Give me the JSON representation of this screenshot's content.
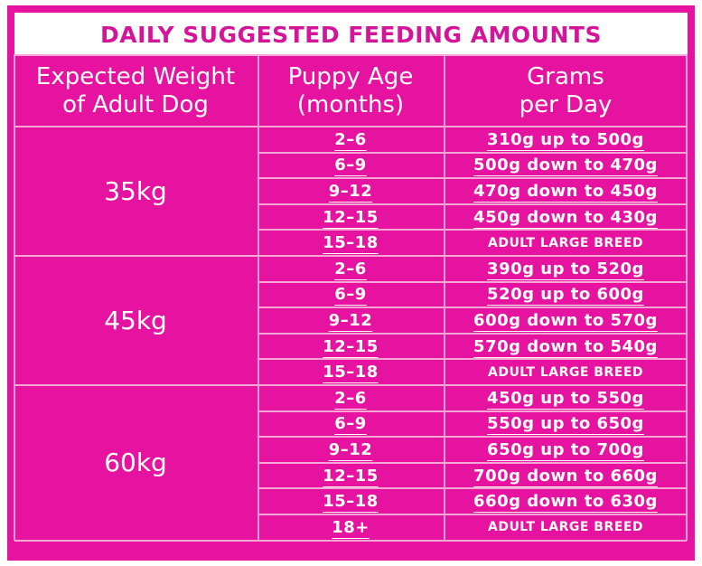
{
  "title": "DAILY SUGGESTED FEEDING AMOUNTS",
  "headers": {
    "weight": "Expected Weight\nof Adult Dog",
    "age": "Puppy Age\n(months)",
    "grams": "Grams\nper Day"
  },
  "groups": [
    {
      "weight": "35kg",
      "rows": [
        {
          "age": "2–6",
          "grams": "310g up to 500g"
        },
        {
          "age": "6–9",
          "grams": "500g down to 470g"
        },
        {
          "age": "9–12",
          "grams": "470g down to 450g"
        },
        {
          "age": "12–15",
          "grams": "450g down to 430g"
        },
        {
          "age": "15–18",
          "grams": "ADULT LARGE BREED"
        }
      ]
    },
    {
      "weight": "45kg",
      "rows": [
        {
          "age": "2–6",
          "grams": "390g up to 520g"
        },
        {
          "age": "6–9",
          "grams": "520g up to 600g"
        },
        {
          "age": "9–12",
          "grams": "600g down to 570g"
        },
        {
          "age": "12–15",
          "grams": "570g down to 540g"
        },
        {
          "age": "15–18",
          "grams": "ADULT LARGE BREED"
        }
      ]
    },
    {
      "weight": "60kg",
      "rows": [
        {
          "age": "2–6",
          "grams": "450g up to 550g"
        },
        {
          "age": "6–9",
          "grams": "550g up to 650g"
        },
        {
          "age": "9–12",
          "grams": "650g up to 700g"
        },
        {
          "age": "12–15",
          "grams": "700g down to 660g"
        },
        {
          "age": "15–18",
          "grams": "660g down to 630g"
        },
        {
          "age": "18+",
          "grams": "ADULT LARGE BREED"
        }
      ]
    }
  ],
  "colors": {
    "background": "#e5139f",
    "title_text": "#d4159a",
    "grid_lines": "#f5a6d4",
    "cell_text": "#ffffff"
  }
}
